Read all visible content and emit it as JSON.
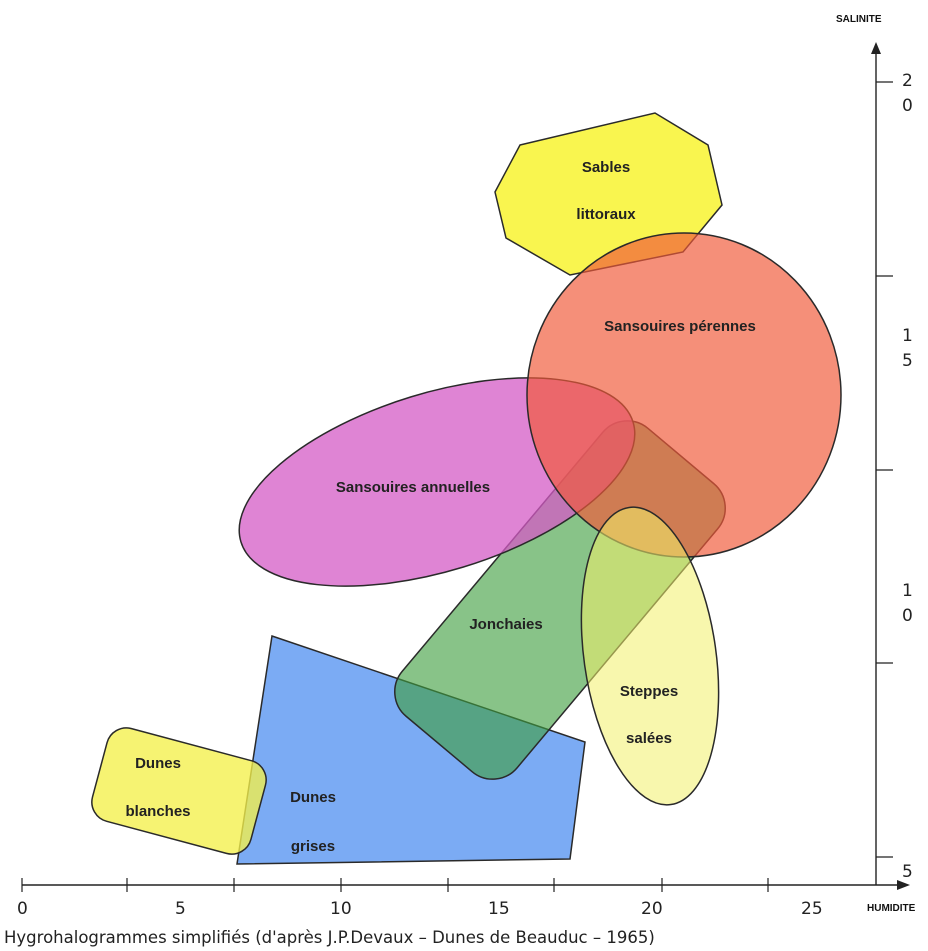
{
  "axes": {
    "x_title": "HUMIDITE",
    "y_title": "SALINITE",
    "x_ticks": [
      {
        "label": "0",
        "value": 0
      },
      {
        "label": "5",
        "value": 5
      },
      {
        "label": "10",
        "value": 10
      },
      {
        "label": "15",
        "value": 15
      },
      {
        "label": "20",
        "value": 20
      },
      {
        "label": "25",
        "value": 25
      }
    ],
    "y_ticks": [
      {
        "line1": "5",
        "line2": "",
        "value": 5
      },
      {
        "line1": "1",
        "line2": "0",
        "value": 10
      },
      {
        "line1": "1",
        "line2": "5",
        "value": 15
      },
      {
        "line1": "2",
        "line2": "0",
        "value": 20
      }
    ]
  },
  "zones": [
    {
      "id": "dunes-grises",
      "lines": [
        "Dunes",
        "grises"
      ],
      "color": "#4f8ff0",
      "opacity": 0.75
    },
    {
      "id": "jonchaies",
      "lines": [
        "Jonchaies"
      ],
      "color": "#3f9e3f",
      "opacity": 0.62
    },
    {
      "id": "dunes-blanches",
      "lines": [
        "Dunes",
        "blanches"
      ],
      "color": "#f4f04a",
      "opacity": 0.78
    },
    {
      "id": "sansouires-annuelles",
      "lines": [
        "Sansouires annuelles"
      ],
      "color": "#d45bc6",
      "opacity": 0.75
    },
    {
      "id": "sables-littoraux",
      "lines": [
        "Sables",
        "littoraux"
      ],
      "color": "#f8f43c",
      "opacity": 0.9
    },
    {
      "id": "sansouires-perennes",
      "lines": [
        "Sansouires pérennes"
      ],
      "color": "#f05a3a",
      "opacity": 0.68
    },
    {
      "id": "steppes-salees",
      "lines": [
        "Steppes",
        "salées"
      ],
      "color": "#f2f06a",
      "opacity": 0.55
    }
  ],
  "caption": "Hygrohalogrammes simplifiés (d'après J.P.Devaux – Dunes de Beauduc – 1965)"
}
